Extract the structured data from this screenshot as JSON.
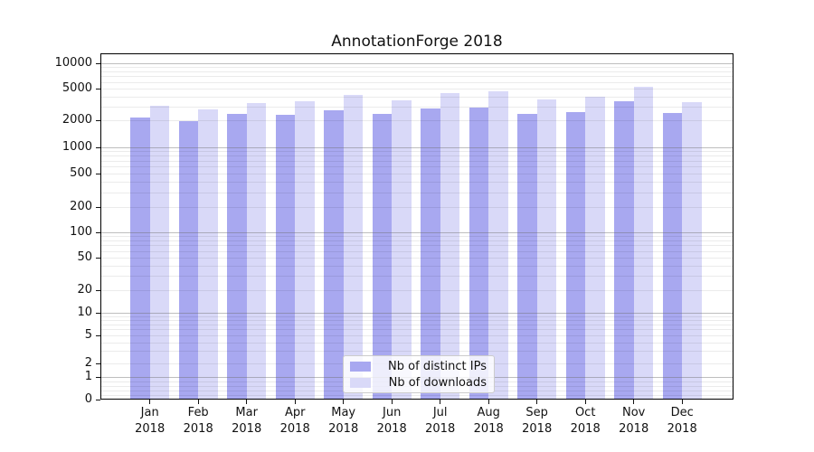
{
  "figure": {
    "background": "#ffffff"
  },
  "chart_data": {
    "type": "bar",
    "title": "AnnotationForge 2018",
    "categories": [
      "Jan",
      "Feb",
      "Mar",
      "Apr",
      "May",
      "Jun",
      "Jul",
      "Aug",
      "Sep",
      "Oct",
      "Nov",
      "Dec"
    ],
    "year_label": "2018",
    "series": [
      {
        "name": "Nb of distinct IPs",
        "color": "#a8a8f0",
        "values": [
          2140,
          1950,
          2380,
          2320,
          2690,
          2400,
          2830,
          2850,
          2420,
          2560,
          3510,
          2460
        ]
      },
      {
        "name": "Nb of downloads",
        "color": "#d9d9f8",
        "values": [
          3020,
          2710,
          3280,
          3450,
          4200,
          3530,
          4390,
          4640,
          3680,
          3930,
          5250,
          3360
        ]
      }
    ],
    "yscale": "symlog",
    "yticks": [
      0,
      1,
      2,
      5,
      10,
      20,
      50,
      100,
      200,
      500,
      1000,
      2000,
      5000,
      10000
    ],
    "ylim": [
      0,
      13000
    ],
    "xlabel": "",
    "ylabel": "",
    "grid": true,
    "legend_position": "lower center"
  }
}
